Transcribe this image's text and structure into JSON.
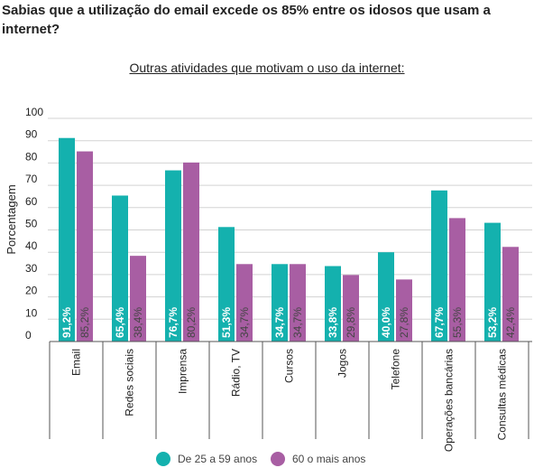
{
  "title": "Sabias que a utilização do email excede os 85% entre os idosos que usam a internet?",
  "colors": {
    "series_a": "#14b1ae",
    "series_b": "#a85ea3",
    "grid": "#d3d3d3",
    "axis": "#555555"
  },
  "chart_data": {
    "type": "bar",
    "title": "Outras atividades que motivam o uso da internet:",
    "xlabel": "",
    "ylabel": "Porcentagem",
    "ylim": [
      0,
      100
    ],
    "yticks": [
      0,
      10,
      20,
      30,
      40,
      50,
      60,
      70,
      80,
      90,
      100
    ],
    "grid": true,
    "legend": "bottom-center",
    "categories": [
      "Email",
      "Redes sociais",
      "Imprensa",
      "Rádio, TV",
      "Cursos",
      "Jogos",
      "Telefone",
      "Operações bancárias",
      "Consultas médicas"
    ],
    "series": [
      {
        "name": "De 25 a 59 anos",
        "values": [
          91.2,
          65.4,
          76.7,
          51.3,
          34.7,
          33.8,
          40.0,
          67.7,
          53.2
        ],
        "labels": [
          "91,2%",
          "65,4%",
          "76,7%",
          "51,3%",
          "34,7%",
          "33,8%",
          "40,0%",
          "67,7%",
          "53,2%"
        ]
      },
      {
        "name": "60 o mais anos",
        "values": [
          85.2,
          38.4,
          80.2,
          34.7,
          34.7,
          29.8,
          27.8,
          55.3,
          42.4
        ],
        "labels": [
          "85,2%",
          "38,4%",
          "80,2%",
          "34,7%",
          "34,7%",
          "29,8%",
          "27,8%",
          "55,3%",
          "42,4%"
        ]
      }
    ]
  }
}
